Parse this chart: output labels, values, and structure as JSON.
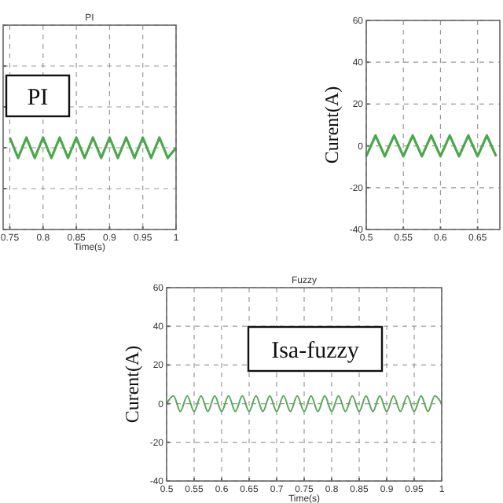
{
  "chart_data": [
    {
      "type": "line",
      "title": "PI",
      "xlabel": "Time(s)",
      "annotations": [
        "PI"
      ],
      "xlim": [
        0.74,
        1
      ],
      "xticks": [
        0.75,
        0.8,
        0.85,
        0.9,
        0.95,
        1
      ],
      "ylim": [
        -40,
        60
      ],
      "yticks": [
        {
          "value": -40,
          "label": null
        },
        {
          "value": -20,
          "label": null
        },
        {
          "value": 0,
          "label": null
        },
        {
          "value": 20,
          "label": null
        },
        {
          "value": 40,
          "label": null
        },
        {
          "value": 60,
          "label": null
        }
      ],
      "tick_labels": "x",
      "grid": true,
      "series": [
        {
          "color": "#4aa84a",
          "x": [
            0.75,
            0.7625,
            0.775,
            0.7875,
            0.8,
            0.8125,
            0.825,
            0.8375,
            0.85,
            0.8625,
            0.875,
            0.8875,
            0.9,
            0.9125,
            0.925,
            0.9375,
            0.95,
            0.9625,
            0.975,
            0.9875,
            1
          ],
          "values": [
            5,
            -5,
            5,
            -5,
            5,
            -5,
            5,
            -5,
            5,
            -5,
            5,
            -5,
            5,
            -5,
            5,
            -5,
            5,
            -5,
            5,
            -5,
            0
          ]
        }
      ]
    },
    {
      "type": "line",
      "ylabel": "Curent(A)",
      "xlim": [
        0.5,
        0.68
      ],
      "xticks": [
        0.5,
        0.55,
        0.6,
        0.65
      ],
      "ylim": [
        -40,
        60
      ],
      "yticks": [
        -40,
        -20,
        0,
        20,
        40,
        60
      ],
      "grid": true,
      "series": [
        {
          "color": "#4aa84a",
          "x": [
            0.5,
            0.5125,
            0.525,
            0.5375,
            0.55,
            0.5625,
            0.575,
            0.5875,
            0.6,
            0.6125,
            0.625,
            0.6375,
            0.65,
            0.6625,
            0.675
          ],
          "values": [
            -5,
            5,
            -5,
            5,
            -5,
            5,
            -5,
            5,
            -5,
            5,
            -5,
            5,
            -5,
            5,
            -5
          ]
        }
      ]
    },
    {
      "type": "line",
      "title": "Fuzzy",
      "xlabel": "Time(s)",
      "ylabel": "Curent(A)",
      "annotations": [
        "Isa-fuzzy"
      ],
      "xlim": [
        0.5,
        1
      ],
      "xticks": [
        0.5,
        0.55,
        0.6,
        0.65,
        0.7,
        0.75,
        0.8,
        0.85,
        0.9,
        0.95,
        1
      ],
      "ylim": [
        -40,
        60
      ],
      "yticks": [
        -40,
        -20,
        0,
        20,
        40,
        60
      ],
      "grid": true,
      "series": [
        {
          "color": "#5aa85a",
          "x": [
            0.5,
            0.5125,
            0.525,
            0.5375,
            0.55,
            0.5625,
            0.575,
            0.5875,
            0.6,
            0.6125,
            0.625,
            0.6375,
            0.65,
            0.6625,
            0.675,
            0.6875,
            0.7,
            0.7125,
            0.725,
            0.7375,
            0.75,
            0.7625,
            0.775,
            0.7875,
            0.8,
            0.8125,
            0.825,
            0.8375,
            0.85,
            0.8625,
            0.875,
            0.8875,
            0.9,
            0.9125,
            0.925,
            0.9375,
            0.95,
            0.9625,
            0.975,
            0.9875,
            1
          ],
          "values": [
            0,
            4,
            -4,
            4,
            -4,
            4,
            -4,
            4,
            -4,
            4,
            -4,
            4,
            -4,
            4,
            -4,
            4,
            -4,
            4,
            -4,
            4,
            -4,
            4,
            -4,
            4,
            -4,
            4,
            -4,
            4,
            -4,
            4,
            -4,
            4,
            -4,
            4,
            -4,
            4,
            -4,
            4,
            -4,
            4,
            0
          ]
        }
      ]
    }
  ]
}
